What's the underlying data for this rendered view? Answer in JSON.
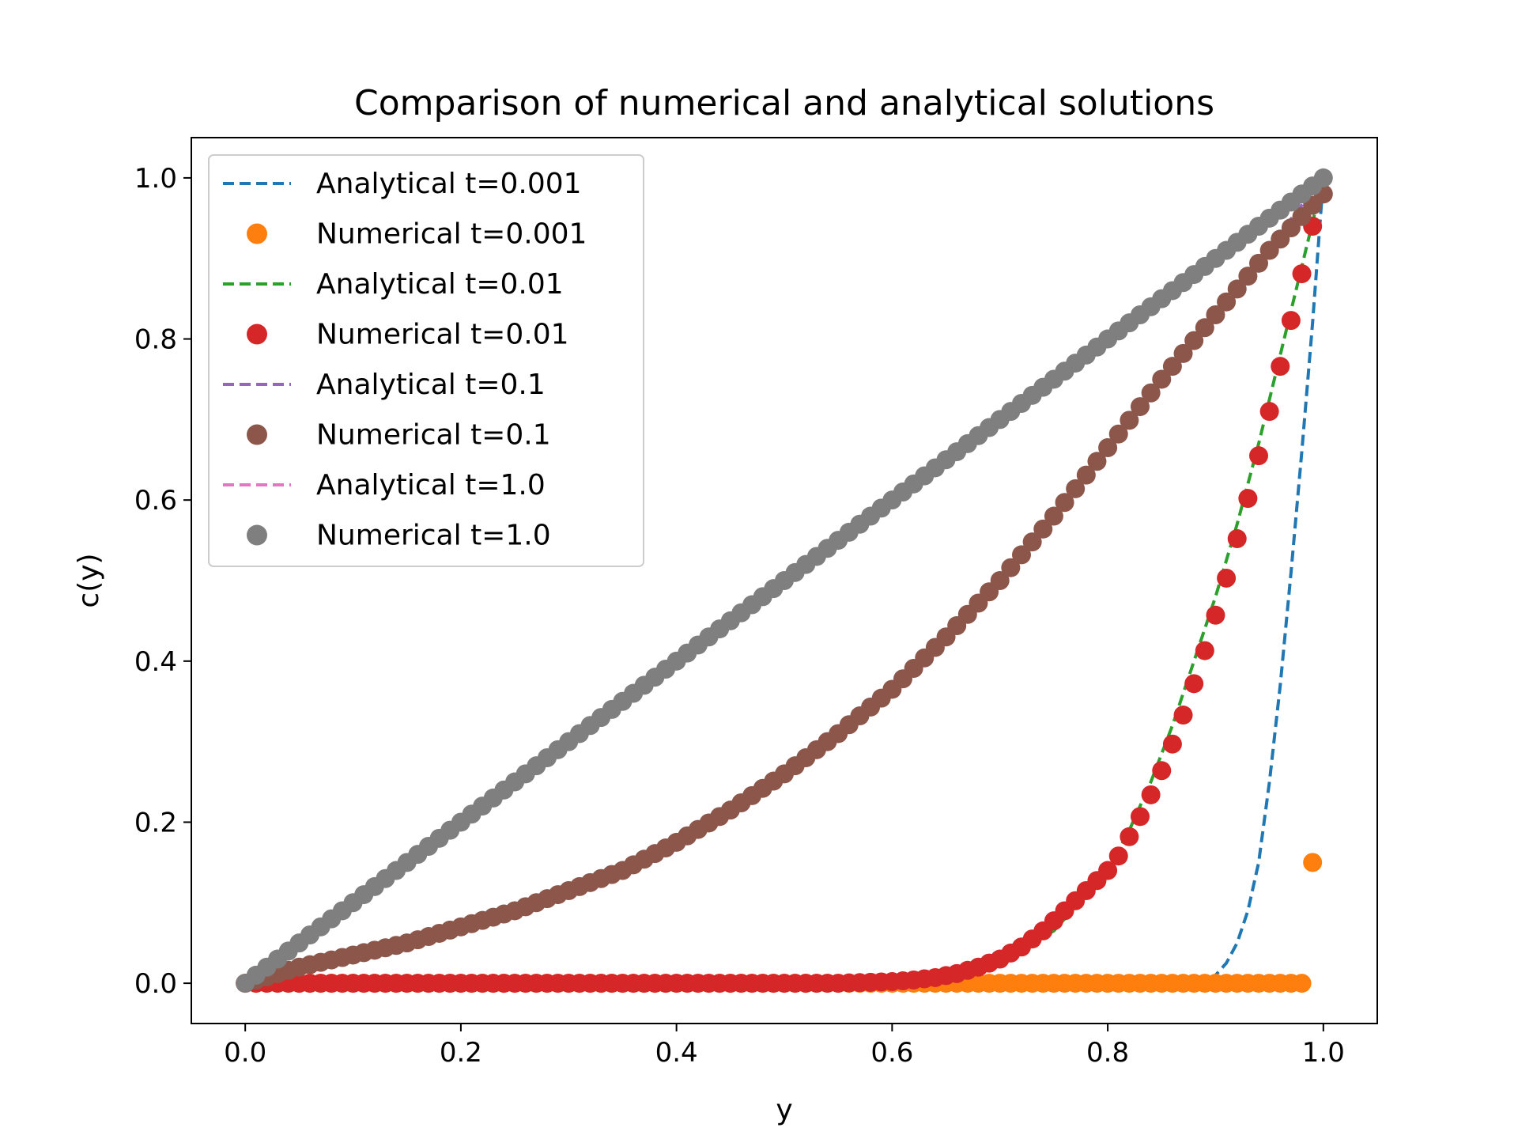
{
  "chart_data": {
    "type": "line",
    "title": "Comparison of numerical and analytical solutions",
    "xlabel": "y",
    "ylabel": "c(y)",
    "xlim": [
      -0.05,
      1.05
    ],
    "ylim": [
      -0.05,
      1.05
    ],
    "xticks": [
      "0.0",
      "0.2",
      "0.4",
      "0.6",
      "0.8",
      "1.0"
    ],
    "yticks": [
      "0.0",
      "0.2",
      "0.4",
      "0.6",
      "0.8",
      "1.0"
    ],
    "grid": false,
    "legend_position": "upper-left",
    "series": [
      {
        "name": "Analytical t=0.001",
        "style": "dashed",
        "color": "#1f77b4",
        "x": [
          0.88,
          0.89,
          0.9,
          0.91,
          0.92,
          0.93,
          0.94,
          0.95,
          0.96,
          0.97,
          0.98,
          0.99,
          1.0
        ],
        "y": [
          0.0,
          0.003,
          0.01,
          0.025,
          0.05,
          0.09,
          0.15,
          0.25,
          0.37,
          0.51,
          0.66,
          0.82,
          1.0
        ]
      },
      {
        "name": "Numerical t=0.001",
        "style": "markers",
        "color": "#ff7f0e",
        "x": [
          0.0,
          0.05,
          0.1,
          0.15,
          0.2,
          0.25,
          0.3,
          0.35,
          0.4,
          0.45,
          0.5,
          0.55,
          0.6,
          0.65,
          0.7,
          0.75,
          0.8,
          0.85,
          0.9,
          0.95,
          0.98,
          0.99
        ],
        "y": [
          0.0,
          0.0,
          0.0,
          0.0,
          0.0,
          0.0,
          0.0,
          0.0,
          0.0,
          0.0,
          0.0,
          0.0,
          0.0,
          0.0,
          0.0,
          0.0,
          0.0,
          0.0,
          0.0,
          0.0,
          0.0,
          0.15
        ]
      },
      {
        "name": "Analytical t=0.01",
        "style": "dashed",
        "color": "#2ca02c",
        "x": [
          0.0,
          0.6,
          0.65,
          0.7,
          0.75,
          0.8,
          0.82,
          0.84,
          0.86,
          0.88,
          0.9,
          0.92,
          0.94,
          0.96,
          0.98,
          1.0
        ],
        "y": [
          0.0,
          0.002,
          0.01,
          0.03,
          0.065,
          0.14,
          0.19,
          0.25,
          0.32,
          0.4,
          0.48,
          0.57,
          0.67,
          0.78,
          0.89,
          1.0
        ]
      },
      {
        "name": "Numerical t=0.01",
        "style": "markers",
        "color": "#d62728",
        "x": [
          0.0,
          0.1,
          0.2,
          0.3,
          0.4,
          0.5,
          0.55,
          0.6,
          0.62,
          0.64,
          0.66,
          0.68,
          0.7,
          0.72,
          0.74,
          0.76,
          0.78,
          0.8,
          0.81,
          0.82,
          0.83,
          0.84,
          0.85,
          0.86,
          0.87,
          0.88,
          0.89,
          0.9,
          0.91,
          0.92,
          0.93,
          0.94,
          0.95,
          0.96,
          0.97,
          0.98,
          0.99
        ],
        "y": [
          0.0,
          0.0,
          0.0,
          0.0,
          0.0,
          0.0,
          0.0,
          0.002,
          0.004,
          0.007,
          0.012,
          0.02,
          0.03,
          0.045,
          0.065,
          0.09,
          0.115,
          0.14,
          0.158,
          0.182,
          0.207,
          0.234,
          0.264,
          0.297,
          0.333,
          0.372,
          0.413,
          0.457,
          0.503,
          0.552,
          0.602,
          0.655,
          0.71,
          0.766,
          0.823,
          0.881,
          0.94
        ]
      },
      {
        "name": "Analytical t=0.1",
        "style": "dashed",
        "color": "#9467bd",
        "x": [
          0.0,
          0.1,
          0.2,
          0.3,
          0.4,
          0.5,
          0.6,
          0.7,
          0.8,
          0.9,
          1.0
        ],
        "y": [
          0.0,
          0.03,
          0.07,
          0.11,
          0.17,
          0.26,
          0.37,
          0.5,
          0.66,
          0.83,
          1.0
        ]
      },
      {
        "name": "Numerical t=0.1",
        "style": "markers",
        "color": "#8c564b",
        "x": [
          0.0,
          0.05,
          0.1,
          0.15,
          0.2,
          0.25,
          0.3,
          0.35,
          0.4,
          0.45,
          0.5,
          0.55,
          0.6,
          0.65,
          0.7,
          0.75,
          0.8,
          0.85,
          0.9,
          0.95,
          1.0
        ],
        "y": [
          0.0,
          0.02,
          0.035,
          0.05,
          0.07,
          0.09,
          0.115,
          0.14,
          0.175,
          0.215,
          0.26,
          0.31,
          0.365,
          0.43,
          0.5,
          0.58,
          0.665,
          0.75,
          0.83,
          0.91,
          0.98
        ]
      },
      {
        "name": "Analytical t=1.0",
        "style": "dashed",
        "color": "#e377c2",
        "x": [
          0.0,
          0.2,
          0.4,
          0.6,
          0.8,
          1.0
        ],
        "y": [
          0.0,
          0.2,
          0.4,
          0.6,
          0.8,
          1.0
        ]
      },
      {
        "name": "Numerical t=1.0",
        "style": "markers",
        "color": "#7f7f7f",
        "x": [
          0.0,
          0.1,
          0.2,
          0.3,
          0.4,
          0.5,
          0.6,
          0.7,
          0.8,
          0.9,
          1.0
        ],
        "y": [
          0.0,
          0.1,
          0.2,
          0.3,
          0.4,
          0.5,
          0.6,
          0.7,
          0.8,
          0.9,
          1.0
        ]
      }
    ]
  }
}
